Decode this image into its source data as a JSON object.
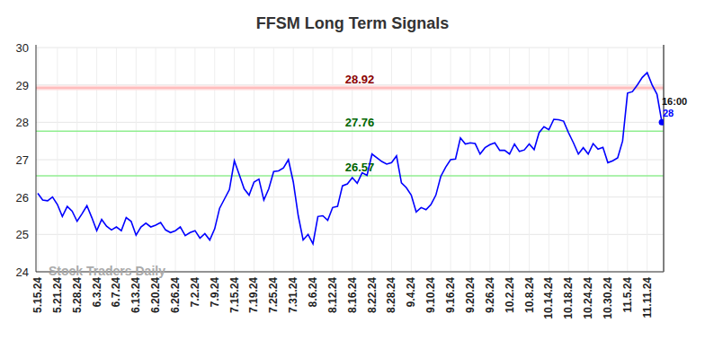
{
  "chart_data": {
    "type": "line",
    "title": "FFSM Long Term Signals",
    "watermark": "Stock Traders Daily",
    "categories": [
      "5.15.24",
      null,
      null,
      null,
      "5.21.24",
      null,
      null,
      null,
      "5.28.24",
      null,
      null,
      null,
      "6.3.24",
      null,
      null,
      null,
      "6.7.24",
      null,
      null,
      null,
      "6.13.24",
      null,
      null,
      null,
      "6.20.24",
      null,
      null,
      null,
      "6.26.24",
      null,
      null,
      null,
      "7.2.24",
      null,
      null,
      null,
      "7.9.24",
      null,
      null,
      null,
      "7.15.24",
      null,
      null,
      null,
      "7.19.24",
      null,
      null,
      null,
      "7.25.24",
      null,
      null,
      null,
      "7.31.24",
      null,
      null,
      null,
      "8.6.24",
      null,
      null,
      null,
      "8.12.24",
      null,
      null,
      null,
      "8.16.24",
      null,
      null,
      null,
      "8.22.24",
      null,
      null,
      null,
      "8.28.24",
      null,
      null,
      null,
      "9.4.24",
      null,
      null,
      null,
      "9.10.24",
      null,
      null,
      null,
      "9.16.24",
      null,
      null,
      null,
      "9.20.24",
      null,
      null,
      null,
      "9.26.24",
      null,
      null,
      null,
      "10.2.24",
      null,
      null,
      null,
      "10.8.24",
      null,
      null,
      null,
      "10.14.24",
      null,
      null,
      null,
      "10.18.24",
      null,
      null,
      null,
      "10.24.24",
      null,
      null,
      null,
      "10.30.24",
      null,
      null,
      null,
      "11.5.24",
      null,
      null,
      null,
      "11.11.24",
      null,
      null,
      null
    ],
    "values": [
      26.1,
      25.92,
      25.9,
      26.0,
      25.8,
      25.48,
      25.75,
      25.62,
      25.35,
      25.55,
      25.77,
      25.45,
      25.1,
      25.4,
      25.22,
      25.12,
      25.2,
      25.1,
      25.45,
      25.35,
      24.98,
      25.2,
      25.3,
      25.2,
      25.25,
      25.32,
      25.12,
      25.05,
      25.1,
      25.2,
      24.97,
      25.05,
      25.1,
      24.9,
      25.02,
      24.85,
      25.15,
      25.7,
      25.95,
      26.2,
      26.97,
      26.6,
      26.22,
      26.05,
      26.4,
      26.48,
      25.92,
      26.22,
      26.68,
      26.7,
      26.78,
      27.0,
      26.4,
      25.5,
      24.85,
      25.0,
      24.75,
      25.48,
      25.5,
      25.38,
      25.72,
      25.75,
      26.3,
      26.35,
      26.52,
      26.37,
      26.65,
      26.58,
      27.15,
      27.05,
      26.95,
      26.88,
      26.92,
      27.1,
      26.38,
      26.25,
      26.05,
      25.6,
      25.72,
      25.66,
      25.8,
      26.05,
      26.55,
      26.8,
      27.0,
      27.02,
      27.58,
      27.42,
      27.45,
      27.43,
      27.15,
      27.32,
      27.4,
      27.45,
      27.25,
      27.25,
      27.15,
      27.42,
      27.22,
      27.26,
      27.42,
      27.27,
      27.72,
      27.88,
      27.8,
      28.08,
      28.07,
      28.03,
      27.72,
      27.45,
      27.15,
      27.32,
      27.15,
      27.43,
      27.28,
      27.33,
      26.92,
      26.97,
      27.05,
      27.5,
      28.78,
      28.82,
      29.0,
      29.2,
      29.33,
      29.0,
      28.75,
      28.0
    ],
    "color": "#0000ff",
    "ylim": [
      24,
      30
    ],
    "yticks": [
      24,
      25,
      26,
      27,
      28,
      29,
      30
    ],
    "grid": true,
    "levels": [
      {
        "value": 28.92,
        "color": "#8b0000"
      },
      {
        "value": 27.76,
        "color": "#006400"
      },
      {
        "value": 26.57,
        "color": "#006400"
      }
    ],
    "last_time": "16:00",
    "last_price": 28
  }
}
